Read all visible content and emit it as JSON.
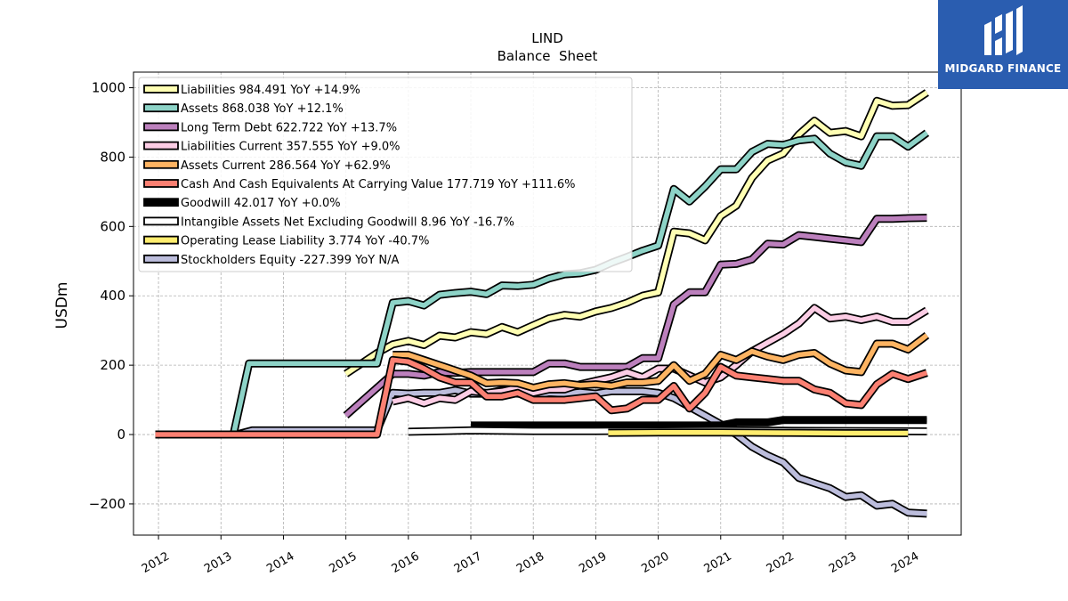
{
  "brand": {
    "name": "MIDGARD FINANCE",
    "bg_color": "#2a5db0"
  },
  "chart_data": {
    "type": "line",
    "title": "LIND",
    "subtitle": "Balance  Sheet",
    "ylabel": "USDm",
    "xlabel": "",
    "ylim": [
      -290,
      1045
    ],
    "xlim": [
      2011.6,
      2024.85
    ],
    "yticks": [
      -200,
      0,
      200,
      400,
      600,
      800,
      1000
    ],
    "ytick_labels": [
      "−200",
      "0",
      "200",
      "400",
      "600",
      "800",
      "1000"
    ],
    "xticks": [
      2012,
      2013,
      2014,
      2015,
      2016,
      2017,
      2018,
      2019,
      2020,
      2021,
      2022,
      2023,
      2024
    ],
    "xtick_labels": [
      "2012",
      "2013",
      "2014",
      "2015",
      "2016",
      "2017",
      "2018",
      "2019",
      "2020",
      "2021",
      "2022",
      "2023",
      "2024"
    ],
    "grid": true,
    "legend_position": "top-left",
    "series": [
      {
        "name": "Stockholders Equity",
        "legend": "Stockholders Equity  -227.399 YoY N/A",
        "color": "#bcbddc",
        "x": [
          2011.95,
          2013.25,
          2013.5,
          2015.5,
          2015.75,
          2016.0,
          2016.25,
          2016.5,
          2016.75,
          2017.0,
          2017.25,
          2017.5,
          2017.75,
          2018.0,
          2018.25,
          2018.5,
          2018.75,
          2019.0,
          2019.25,
          2019.5,
          2019.75,
          2020.0,
          2020.25,
          2020.5,
          2020.75,
          2021.0,
          2021.25,
          2021.5,
          2021.75,
          2022.0,
          2022.25,
          2022.5,
          2022.75,
          2023.0,
          2023.25,
          2023.5,
          2023.75,
          2024.0,
          2024.3
        ],
        "values": [
          0,
          0,
          12,
          12,
          120,
          118,
          120,
          120,
          128,
          118,
          118,
          128,
          118,
          112,
          120,
          118,
          122,
          118,
          125,
          125,
          125,
          120,
          105,
          80,
          55,
          30,
          0,
          -35,
          -60,
          -80,
          -125,
          -140,
          -155,
          -180,
          -175,
          -205,
          -200,
          -225,
          -228
        ]
      },
      {
        "name": "Liabilities",
        "legend": "Liabilities  984.491 YoY +14.9%",
        "color": "#ffffb3",
        "x": [
          2015.0,
          2015.25,
          2015.5,
          2015.75,
          2016.0,
          2016.25,
          2016.5,
          2016.75,
          2017.0,
          2017.25,
          2017.5,
          2017.75,
          2018.0,
          2018.25,
          2018.5,
          2018.75,
          2019.0,
          2019.25,
          2019.5,
          2019.75,
          2020.0,
          2020.25,
          2020.5,
          2020.75,
          2021.0,
          2021.25,
          2021.5,
          2021.75,
          2022.0,
          2022.25,
          2022.5,
          2022.75,
          2023.0,
          2023.25,
          2023.5,
          2023.75,
          2024.0,
          2024.3
        ],
        "values": [
          175,
          205,
          235,
          260,
          270,
          258,
          285,
          280,
          295,
          290,
          310,
          295,
          315,
          335,
          345,
          340,
          355,
          365,
          380,
          400,
          410,
          585,
          580,
          560,
          630,
          660,
          740,
          790,
          810,
          865,
          905,
          870,
          875,
          860,
          962,
          948,
          950,
          986
        ]
      },
      {
        "name": "Assets",
        "legend": "Assets  868.038 YoY +12.1%",
        "color": "#8dd3c7",
        "x": [
          2011.95,
          2013.2,
          2013.45,
          2015.5,
          2015.75,
          2016.0,
          2016.25,
          2016.5,
          2016.75,
          2017.0,
          2017.25,
          2017.5,
          2017.75,
          2018.0,
          2018.25,
          2018.5,
          2018.75,
          2019.0,
          2019.25,
          2019.5,
          2019.75,
          2020.0,
          2020.25,
          2020.5,
          2020.75,
          2021.0,
          2021.25,
          2021.5,
          2021.75,
          2022.0,
          2022.25,
          2022.5,
          2022.75,
          2023.0,
          2023.25,
          2023.5,
          2023.75,
          2024.0,
          2024.3
        ],
        "values": [
          0,
          0,
          205,
          205,
          380,
          385,
          372,
          403,
          408,
          412,
          405,
          430,
          428,
          432,
          450,
          462,
          465,
          475,
          495,
          512,
          530,
          545,
          708,
          672,
          715,
          765,
          765,
          815,
          838,
          835,
          848,
          853,
          810,
          785,
          775,
          860,
          860,
          830,
          870
        ]
      },
      {
        "name": "Long Term Debt",
        "legend": "Long Term Debt  622.722 YoY +13.7%",
        "color": "#bc80bd",
        "x": [
          2015.0,
          2015.75,
          2016.0,
          2016.25,
          2016.5,
          2016.75,
          2017.0,
          2017.25,
          2017.5,
          2017.75,
          2018.0,
          2018.25,
          2018.5,
          2018.75,
          2019.0,
          2019.25,
          2019.5,
          2019.75,
          2020.0,
          2020.25,
          2020.5,
          2020.75,
          2021.0,
          2021.25,
          2021.5,
          2021.75,
          2022.0,
          2022.25,
          2022.5,
          2022.75,
          2023.0,
          2023.25,
          2023.5,
          2023.75,
          2024.0,
          2024.3
        ],
        "values": [
          55,
          175,
          175,
          170,
          180,
          178,
          180,
          180,
          180,
          180,
          180,
          205,
          205,
          195,
          195,
          195,
          195,
          220,
          220,
          375,
          410,
          410,
          490,
          492,
          505,
          550,
          548,
          575,
          570,
          565,
          560,
          555,
          622,
          622,
          624,
          625
        ]
      },
      {
        "name": "Liabilities Current",
        "legend": "Liabilities Current  357.555 YoY +9.0%",
        "color": "#fccde5",
        "x": [
          2015.75,
          2016.0,
          2016.25,
          2016.5,
          2016.75,
          2017.0,
          2017.25,
          2017.5,
          2017.75,
          2018.0,
          2018.25,
          2018.5,
          2018.75,
          2019.0,
          2019.25,
          2019.5,
          2019.75,
          2020.0,
          2020.25,
          2020.5,
          2020.75,
          2021.0,
          2021.25,
          2021.5,
          2021.75,
          2022.0,
          2022.25,
          2022.5,
          2022.75,
          2023.0,
          2023.25,
          2023.5,
          2023.75,
          2024.0,
          2024.3
        ],
        "values": [
          95,
          105,
          90,
          105,
          100,
          125,
          120,
          125,
          135,
          120,
          130,
          130,
          145,
          155,
          165,
          180,
          165,
          190,
          190,
          170,
          150,
          165,
          200,
          240,
          265,
          290,
          320,
          365,
          335,
          340,
          330,
          340,
          325,
          325,
          358
        ]
      },
      {
        "name": "Assets Current",
        "legend": "Assets Current  286.564 YoY +62.9%",
        "color": "#fdb462",
        "x": [
          2015.75,
          2016.0,
          2016.25,
          2016.5,
          2016.75,
          2017.0,
          2017.25,
          2017.5,
          2017.75,
          2018.0,
          2018.25,
          2018.5,
          2018.75,
          2019.0,
          2019.25,
          2019.5,
          2019.75,
          2020.0,
          2020.25,
          2020.5,
          2020.75,
          2021.0,
          2021.25,
          2021.5,
          2021.75,
          2022.0,
          2022.25,
          2022.5,
          2022.75,
          2023.0,
          2023.25,
          2023.5,
          2023.75,
          2024.0,
          2024.3
        ],
        "values": [
          230,
          230,
          215,
          200,
          185,
          170,
          148,
          150,
          148,
          135,
          145,
          148,
          142,
          145,
          140,
          150,
          150,
          155,
          200,
          155,
          175,
          230,
          215,
          240,
          225,
          215,
          230,
          235,
          205,
          185,
          180,
          262,
          262,
          245,
          286
        ]
      },
      {
        "name": "Cash And Cash Equivalents At Carrying Value",
        "legend": "Cash And Cash Equivalents At Carrying Value  177.719 YoY +111.6%",
        "color": "#fb8072",
        "x": [
          2011.95,
          2015.5,
          2015.75,
          2016.0,
          2016.25,
          2016.5,
          2016.75,
          2017.0,
          2017.25,
          2017.5,
          2017.75,
          2018.0,
          2018.25,
          2018.5,
          2018.75,
          2019.0,
          2019.25,
          2019.5,
          2019.75,
          2020.0,
          2020.25,
          2020.5,
          2020.75,
          2021.0,
          2021.25,
          2021.5,
          2021.75,
          2022.0,
          2022.25,
          2022.5,
          2022.75,
          2023.0,
          2023.25,
          2023.5,
          2023.75,
          2024.0,
          2024.3
        ],
        "values": [
          0,
          0,
          215,
          210,
          190,
          165,
          150,
          150,
          110,
          110,
          120,
          100,
          100,
          100,
          105,
          110,
          70,
          75,
          100,
          100,
          140,
          75,
          120,
          195,
          170,
          165,
          160,
          155,
          155,
          130,
          120,
          90,
          85,
          145,
          175,
          160,
          178
        ]
      },
      {
        "name": "Goodwill",
        "legend": "Goodwill  42.017 YoY +0.0%",
        "color": "#000000",
        "x": [
          2017.0,
          2021.0,
          2021.25,
          2021.75,
          2022.0,
          2024.3
        ],
        "values": [
          26,
          26,
          35,
          35,
          42,
          42
        ]
      },
      {
        "name": "Intangible Assets Net Excluding Goodwill",
        "legend": "Intangible Assets Net Excluding Goodwill  8.96 YoY -16.7%",
        "color": "#ffffff",
        "x": [
          2016.0,
          2017.0,
          2018.0,
          2019.0,
          2020.0,
          2021.0,
          2022.0,
          2023.0,
          2024.3
        ],
        "values": [
          8,
          12,
          10,
          10,
          11,
          12,
          11,
          10,
          9
        ]
      },
      {
        "name": "Operating Lease Liability",
        "legend": "Operating Lease Liability  3.774 YoY -40.7%",
        "color": "#ffed6f",
        "x": [
          2019.2,
          2020.0,
          2021.0,
          2022.0,
          2023.0,
          2024.0
        ],
        "values": [
          5,
          6,
          6,
          5,
          4,
          4
        ]
      }
    ],
    "legend_order": [
      "Liabilities",
      "Assets",
      "Long Term Debt",
      "Liabilities Current",
      "Assets Current",
      "Cash And Cash Equivalents At Carrying Value",
      "Goodwill",
      "Intangible Assets Net Excluding Goodwill",
      "Operating Lease Liability",
      "Stockholders Equity"
    ]
  }
}
